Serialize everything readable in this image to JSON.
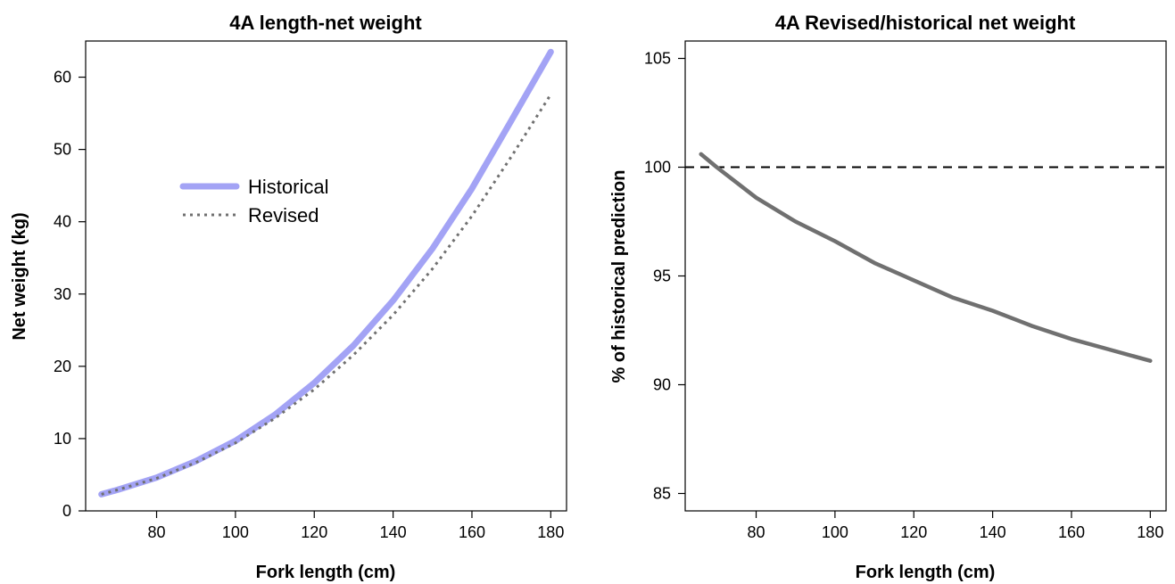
{
  "chart_data": [
    {
      "type": "line",
      "title": "4A length-net weight",
      "xlabel": "Fork length (cm)",
      "ylabel": "Net weight (kg)",
      "xlim": [
        62,
        184
      ],
      "ylim": [
        0,
        65
      ],
      "xticks": [
        80,
        100,
        120,
        140,
        160,
        180
      ],
      "yticks": [
        0,
        10,
        20,
        30,
        40,
        50,
        60
      ],
      "legend": "center-left",
      "x": [
        66,
        70,
        80,
        90,
        100,
        110,
        120,
        130,
        140,
        150,
        160,
        170,
        180
      ],
      "series": [
        {
          "name": "Historical",
          "color": "#a3a3f5",
          "style": "solid",
          "values": [
            2.3,
            2.9,
            4.6,
            6.9,
            9.7,
            13.3,
            17.7,
            22.9,
            29.1,
            36.3,
            44.6,
            54.0,
            63.5
          ]
        },
        {
          "name": "Revised",
          "color": "#707070",
          "style": "dotted",
          "values": [
            2.3,
            2.9,
            4.5,
            6.7,
            9.4,
            12.8,
            16.8,
            21.6,
            27.1,
            33.5,
            40.8,
            49.0,
            57.6
          ]
        }
      ]
    },
    {
      "type": "line",
      "title": "4A Revised/historical net weight",
      "xlabel": "Fork length (cm)",
      "ylabel": "% of historical prediction",
      "xlim": [
        62,
        184
      ],
      "ylim": [
        84.2,
        105.8
      ],
      "xticks": [
        80,
        100,
        120,
        140,
        160,
        180
      ],
      "yticks": [
        85,
        90,
        95,
        100,
        105
      ],
      "reference_line": {
        "y": 100,
        "style": "dashed",
        "color": "#000000"
      },
      "x": [
        66,
        70,
        80,
        90,
        100,
        110,
        120,
        130,
        140,
        150,
        160,
        170,
        180
      ],
      "series": [
        {
          "color": "#707070",
          "style": "solid",
          "values": [
            100.6,
            100.0,
            98.6,
            97.5,
            96.6,
            95.6,
            94.8,
            94.0,
            93.4,
            92.7,
            92.1,
            91.6,
            91.1
          ]
        }
      ]
    }
  ]
}
